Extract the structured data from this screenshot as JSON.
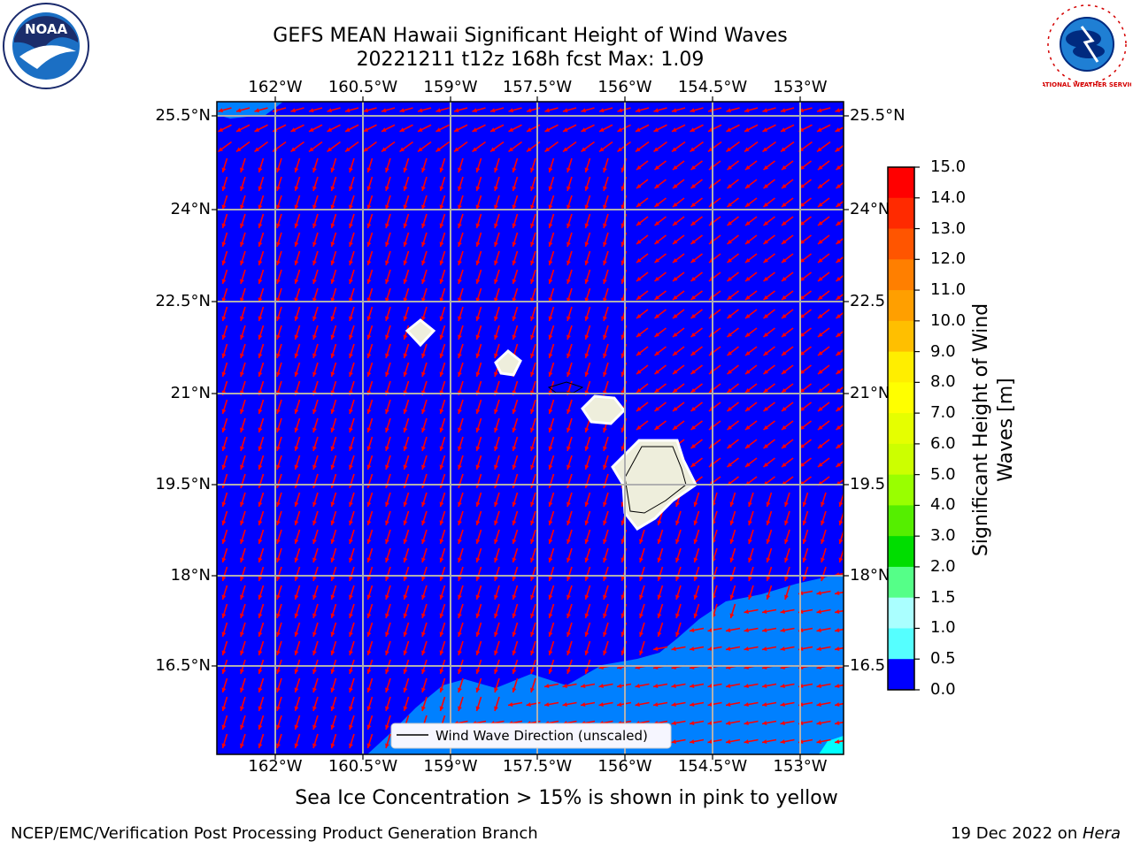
{
  "title_line1": "GEFS MEAN Hawaii Significant Height of Wind Waves",
  "title_line2": "20221211 t12z 168h fcst   Max: 1.09",
  "logo_left_text": "NOAA",
  "logo_right_text": "NATIONAL WEATHER SERVICE",
  "map": {
    "lon_ticks": [
      "162°W",
      "160.5°W",
      "159°W",
      "157.5°W",
      "156°W",
      "154.5°W",
      "153°W"
    ],
    "lat_ticks_left": [
      "25.5°N",
      "24°N",
      "22.5°N",
      "21°N",
      "19.5°N",
      "18°N",
      "16.5°N"
    ],
    "lat_ticks_right": [
      "25.5°N",
      "24°N",
      "22.5",
      "21°N",
      "19.5",
      "18°N",
      "16.5"
    ],
    "legend_label": "Wind Wave Direction (unscaled)",
    "ocean_color": "#0000ff",
    "wave_band_color": "#0080ff",
    "arrow_color": "#ff0000",
    "land_color": "#eeeedc"
  },
  "colorbar": {
    "label": "Significant Height of Wind Waves [m]",
    "ticks": [
      "15.0",
      "14.0",
      "13.0",
      "12.0",
      "11.0",
      "10.0",
      "9.0",
      "8.0",
      "7.0",
      "6.0",
      "5.0",
      "4.0",
      "3.0",
      "2.0",
      "1.5",
      "1.0",
      "0.5",
      "0.0"
    ],
    "colors": [
      "#ff0000",
      "#ff2a00",
      "#ff5500",
      "#ff7f00",
      "#ff9f00",
      "#ffbf00",
      "#ffee00",
      "#ffff00",
      "#e5ff00",
      "#ccff00",
      "#99ff00",
      "#55ee00",
      "#00dd00",
      "#55ff88",
      "#aaffff",
      "#55ffff",
      "#00ffff",
      "#0080ff",
      "#0000ff"
    ]
  },
  "ice_note": "Sea Ice Concentration > 15% is shown in pink to yellow",
  "footer_left": "NCEP/EMC/Verification Post Processing Product Generation Branch",
  "footer_right_prefix": "19 Dec 2022 on ",
  "footer_right_host": "Hera"
}
